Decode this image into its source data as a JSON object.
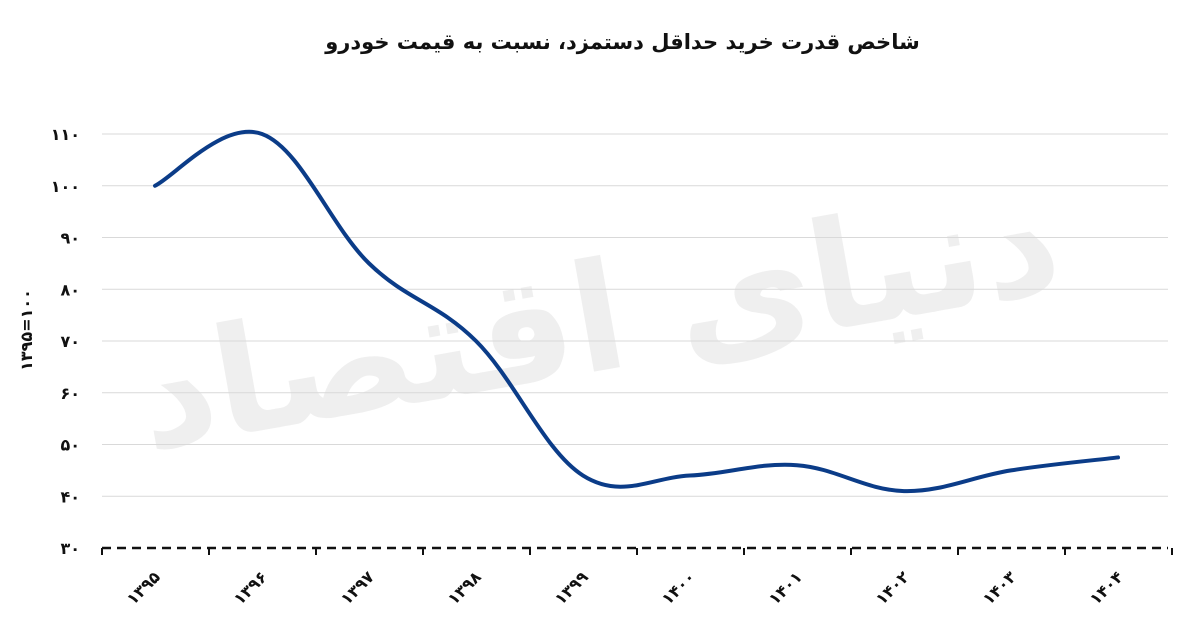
{
  "chart_data": {
    "type": "line",
    "title": "شاخص قدرت خرید حداقل دستمزد، نسبت به قیمت خودرو",
    "ylabel": "۱۳۹۵=۱۰۰",
    "xlabel": "",
    "categories": [
      "۱۳۹۵",
      "۱۳۹۶",
      "۱۳۹۷",
      "۱۳۹۸",
      "۱۳۹۹",
      "۱۴۰۰",
      "۱۴۰۱",
      "۱۴۰۲",
      "۱۴۰۳",
      "۱۴۰۴"
    ],
    "series": [
      {
        "values": [
          100,
          110,
          85,
          70,
          44,
          44,
          46,
          41,
          45,
          47.5
        ]
      }
    ],
    "y_ticks": [
      30,
      40,
      50,
      60,
      70,
      80,
      90,
      100,
      110
    ],
    "y_tick_labels": [
      "۳۰",
      "۴۰",
      "۵۰",
      "۶۰",
      "۷۰",
      "۸۰",
      "۹۰",
      "۱۰۰",
      "۱۱۰"
    ],
    "ylim": [
      30,
      110
    ],
    "grid": true,
    "line_color": "#0b3c88",
    "watermark": "دنیای اقتصاد"
  }
}
